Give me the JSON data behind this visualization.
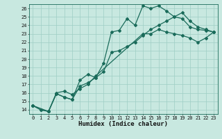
{
  "xlabel": "Humidex (Indice chaleur)",
  "bg_color": "#c8e8e0",
  "line_color": "#1a6b5a",
  "ylim": [
    13.5,
    26.5
  ],
  "xlim": [
    -0.5,
    23.5
  ],
  "yticks": [
    14,
    15,
    16,
    17,
    18,
    19,
    20,
    21,
    22,
    23,
    24,
    25,
    26
  ],
  "xticks": [
    0,
    1,
    2,
    3,
    4,
    5,
    6,
    7,
    8,
    9,
    10,
    11,
    12,
    13,
    14,
    15,
    16,
    17,
    18,
    19,
    20,
    21,
    22,
    23
  ],
  "line1": {
    "x": [
      0,
      1,
      2,
      3,
      4,
      5,
      6,
      7,
      8,
      9,
      10,
      11,
      12,
      13,
      14,
      15,
      16,
      17,
      18,
      19,
      20,
      21,
      22,
      23
    ],
    "y": [
      14.5,
      14.0,
      13.8,
      15.9,
      15.5,
      15.2,
      17.5,
      18.2,
      17.8,
      19.5,
      23.2,
      23.4,
      24.8,
      24.0,
      26.3,
      26.0,
      26.3,
      25.7,
      25.0,
      24.8,
      23.8,
      23.5,
      23.4,
      23.2
    ]
  },
  "line2": {
    "x": [
      0,
      1,
      2,
      3,
      4,
      5,
      6,
      7,
      8,
      9,
      10,
      11,
      12,
      13,
      14,
      15,
      16,
      17,
      18,
      19,
      20,
      21,
      22,
      23
    ],
    "y": [
      14.5,
      14.0,
      13.8,
      15.9,
      15.5,
      15.2,
      16.8,
      17.2,
      17.8,
      18.5,
      20.8,
      21.0,
      21.5,
      22.0,
      22.8,
      23.5,
      24.0,
      24.5,
      25.0,
      25.5,
      24.5,
      23.8,
      23.5,
      23.2
    ]
  },
  "line3": {
    "x": [
      0,
      2,
      3,
      4,
      5,
      6,
      7,
      8,
      14,
      15,
      16,
      17,
      18,
      19,
      20,
      21,
      22,
      23
    ],
    "y": [
      14.5,
      13.8,
      16.0,
      16.2,
      15.8,
      16.5,
      17.0,
      18.0,
      23.0,
      23.0,
      23.5,
      23.2,
      23.0,
      22.8,
      22.5,
      22.0,
      22.5,
      23.2
    ]
  },
  "marker_size": 2.0,
  "line_width": 0.9,
  "grid_color": "#9ecec4",
  "tick_fontsize": 5.0,
  "xlabel_fontsize": 6.5
}
